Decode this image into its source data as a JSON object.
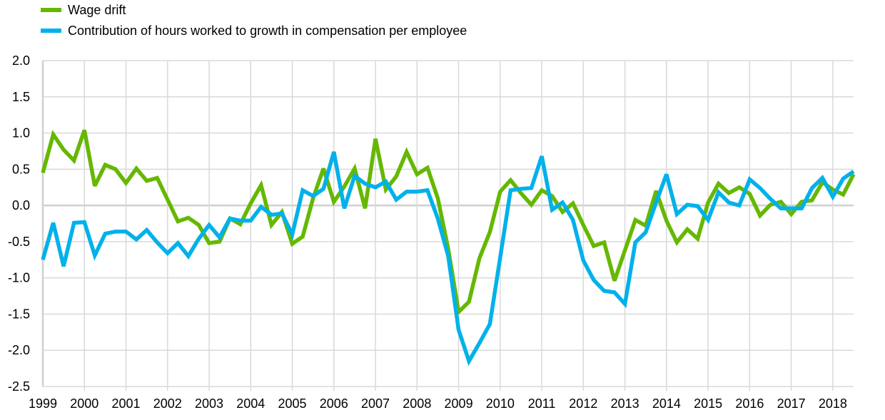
{
  "chart_data": {
    "type": "line",
    "title": "",
    "xlabel": "",
    "ylabel": "",
    "ylim": [
      -2.5,
      2.0
    ],
    "yticks": [
      "2.0",
      "1.5",
      "1.0",
      "0.5",
      "0.0",
      "-0.5",
      "-1.0",
      "-1.5",
      "-2.0",
      "-2.5"
    ],
    "xticks": [
      "1999",
      "2000",
      "2001",
      "2002",
      "2003",
      "2004",
      "2005",
      "2006",
      "2007",
      "2008",
      "2009",
      "2010",
      "2011",
      "2012",
      "2013",
      "2014",
      "2015",
      "2016",
      "2017",
      "2018"
    ],
    "x_start": 1999.0,
    "x_step": 0.25,
    "x_end": 2018.5,
    "grid": true,
    "legend_position": "top-left",
    "series": [
      {
        "name": "Wage drift",
        "color": "#65b800",
        "values": [
          0.45,
          0.98,
          0.77,
          0.62,
          1.04,
          0.27,
          0.56,
          0.5,
          0.31,
          0.51,
          0.34,
          0.38,
          0.08,
          -0.22,
          -0.17,
          -0.27,
          -0.52,
          -0.5,
          -0.18,
          -0.26,
          0.03,
          0.28,
          -0.27,
          -0.09,
          -0.53,
          -0.43,
          0.1,
          0.51,
          0.05,
          0.26,
          0.51,
          -0.04,
          0.92,
          0.22,
          0.4,
          0.74,
          0.43,
          0.52,
          0.1,
          -0.6,
          -1.47,
          -1.33,
          -0.73,
          -0.37,
          0.19,
          0.35,
          0.17,
          0.01,
          0.21,
          0.13,
          -0.09,
          0.03,
          -0.27,
          -0.56,
          -0.51,
          -1.04,
          -0.62,
          -0.2,
          -0.28,
          0.2,
          -0.21,
          -0.51,
          -0.33,
          -0.46,
          0.04,
          0.3,
          0.17,
          0.25,
          0.16,
          -0.14,
          0.01,
          0.05,
          -0.12,
          0.05,
          0.07,
          0.32,
          0.22,
          0.15,
          0.43
        ]
      },
      {
        "name": "Contribution of hours worked to growth in compensation per employee",
        "color": "#00b1ea",
        "values": [
          -0.75,
          -0.24,
          -0.84,
          -0.24,
          -0.23,
          -0.69,
          -0.39,
          -0.36,
          -0.36,
          -0.47,
          -0.34,
          -0.51,
          -0.66,
          -0.52,
          -0.7,
          -0.46,
          -0.27,
          -0.44,
          -0.18,
          -0.21,
          -0.21,
          -0.02,
          -0.13,
          -0.11,
          -0.4,
          0.21,
          0.13,
          0.23,
          0.74,
          -0.04,
          0.41,
          0.3,
          0.25,
          0.33,
          0.08,
          0.19,
          0.19,
          0.21,
          -0.18,
          -0.7,
          -1.72,
          -2.15,
          -1.9,
          -1.64,
          -0.72,
          0.21,
          0.23,
          0.24,
          0.68,
          -0.06,
          0.04,
          -0.2,
          -0.76,
          -1.03,
          -1.18,
          -1.2,
          -1.36,
          -0.51,
          -0.37,
          0.04,
          0.43,
          -0.12,
          0.01,
          -0.01,
          -0.2,
          0.18,
          0.04,
          0.0,
          0.36,
          0.24,
          0.09,
          -0.04,
          -0.04,
          -0.04,
          0.24,
          0.38,
          0.12,
          0.37,
          0.47
        ]
      }
    ]
  }
}
